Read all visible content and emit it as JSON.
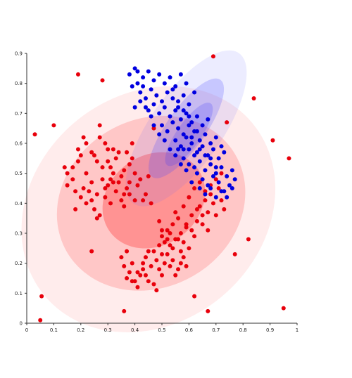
{
  "chart_data": {
    "type": "scatter",
    "title": "",
    "xlabel": "",
    "ylabel": "",
    "xlim": [
      0,
      1
    ],
    "ylim": [
      0,
      0.9
    ],
    "grid": false,
    "x_ticks": [
      "0",
      "0.1",
      "0.2",
      "0.3",
      "0.4",
      "0.5",
      "0.6",
      "0.7",
      "0.8",
      "0.9",
      "1"
    ],
    "y_ticks": [
      "0",
      "0.1",
      "0.2",
      "0.3",
      "0.4",
      "0.5",
      "0.6",
      "0.7",
      "0.8",
      "0.9"
    ],
    "series": [
      {
        "color": "#e8000b",
        "values": [
          [
            0.05,
            0.01
          ],
          [
            0.055,
            0.09
          ],
          [
            0.03,
            0.63
          ],
          [
            0.1,
            0.66
          ],
          [
            0.19,
            0.83
          ],
          [
            0.28,
            0.81
          ],
          [
            0.36,
            0.04
          ],
          [
            0.47,
            0.65
          ],
          [
            0.69,
            0.89
          ],
          [
            0.84,
            0.75
          ],
          [
            0.74,
            0.67
          ],
          [
            0.91,
            0.61
          ],
          [
            0.97,
            0.55
          ],
          [
            0.82,
            0.28
          ],
          [
            0.77,
            0.23
          ],
          [
            0.62,
            0.09
          ],
          [
            0.67,
            0.04
          ],
          [
            0.95,
            0.05
          ],
          [
            0.24,
            0.24
          ],
          [
            0.43,
            0.41
          ],
          [
            0.46,
            0.4
          ],
          [
            0.15,
            0.5
          ],
          [
            0.17,
            0.52
          ],
          [
            0.2,
            0.56
          ],
          [
            0.21,
            0.62
          ],
          [
            0.22,
            0.5
          ],
          [
            0.24,
            0.47
          ],
          [
            0.25,
            0.56
          ],
          [
            0.26,
            0.54
          ],
          [
            0.27,
            0.62
          ],
          [
            0.29,
            0.6
          ],
          [
            0.3,
            0.58
          ],
          [
            0.31,
            0.52
          ],
          [
            0.32,
            0.47
          ],
          [
            0.33,
            0.55
          ],
          [
            0.35,
            0.49
          ],
          [
            0.36,
            0.51
          ],
          [
            0.37,
            0.45
          ],
          [
            0.38,
            0.53
          ],
          [
            0.39,
            0.6
          ],
          [
            0.4,
            0.5
          ],
          [
            0.41,
            0.46
          ],
          [
            0.22,
            0.4
          ],
          [
            0.25,
            0.38
          ],
          [
            0.27,
            0.36
          ],
          [
            0.29,
            0.42
          ],
          [
            0.31,
            0.4
          ],
          [
            0.33,
            0.44
          ],
          [
            0.35,
            0.41
          ],
          [
            0.36,
            0.39
          ],
          [
            0.38,
            0.43
          ],
          [
            0.4,
            0.41
          ],
          [
            0.14,
            0.52
          ],
          [
            0.15,
            0.46
          ],
          [
            0.18,
            0.44
          ],
          [
            0.2,
            0.42
          ],
          [
            0.23,
            0.44
          ],
          [
            0.26,
            0.43
          ],
          [
            0.28,
            0.48
          ],
          [
            0.3,
            0.46
          ],
          [
            0.32,
            0.5
          ],
          [
            0.34,
            0.57
          ],
          [
            0.37,
            0.57
          ],
          [
            0.19,
            0.58
          ],
          [
            0.22,
            0.6
          ],
          [
            0.24,
            0.57
          ],
          [
            0.27,
            0.66
          ],
          [
            0.28,
            0.52
          ],
          [
            0.3,
            0.54
          ],
          [
            0.17,
            0.48
          ],
          [
            0.19,
            0.54
          ],
          [
            0.21,
            0.45
          ],
          [
            0.24,
            0.41
          ],
          [
            0.26,
            0.35
          ],
          [
            0.29,
            0.45
          ],
          [
            0.31,
            0.48
          ],
          [
            0.34,
            0.47
          ],
          [
            0.36,
            0.43
          ],
          [
            0.38,
            0.47
          ],
          [
            0.39,
            0.55
          ],
          [
            0.42,
            0.48
          ],
          [
            0.44,
            0.43
          ],
          [
            0.45,
            0.49
          ],
          [
            0.18,
            0.38
          ],
          [
            0.32,
            0.58
          ],
          [
            0.49,
            0.34
          ],
          [
            0.5,
            0.29
          ],
          [
            0.52,
            0.31
          ],
          [
            0.53,
            0.26
          ],
          [
            0.54,
            0.33
          ],
          [
            0.55,
            0.28
          ],
          [
            0.56,
            0.35
          ],
          [
            0.57,
            0.3
          ],
          [
            0.58,
            0.27
          ],
          [
            0.59,
            0.32
          ],
          [
            0.6,
            0.25
          ],
          [
            0.61,
            0.36
          ],
          [
            0.62,
            0.29
          ],
          [
            0.63,
            0.34
          ],
          [
            0.64,
            0.39
          ],
          [
            0.65,
            0.33
          ],
          [
            0.66,
            0.41
          ],
          [
            0.67,
            0.37
          ],
          [
            0.68,
            0.43
          ],
          [
            0.69,
            0.4
          ],
          [
            0.7,
            0.36
          ],
          [
            0.71,
            0.45
          ],
          [
            0.72,
            0.41
          ],
          [
            0.73,
            0.38
          ],
          [
            0.6,
            0.42
          ],
          [
            0.62,
            0.45
          ],
          [
            0.64,
            0.47
          ],
          [
            0.66,
            0.44
          ],
          [
            0.68,
            0.46
          ],
          [
            0.7,
            0.48
          ],
          [
            0.72,
            0.5
          ],
          [
            0.58,
            0.39
          ],
          [
            0.55,
            0.37
          ],
          [
            0.53,
            0.3
          ],
          [
            0.51,
            0.27
          ],
          [
            0.5,
            0.23
          ],
          [
            0.48,
            0.21
          ],
          [
            0.46,
            0.19
          ],
          [
            0.45,
            0.24
          ],
          [
            0.44,
            0.22
          ],
          [
            0.43,
            0.18
          ],
          [
            0.42,
            0.16
          ],
          [
            0.41,
            0.12
          ],
          [
            0.4,
            0.14
          ],
          [
            0.39,
            0.2
          ],
          [
            0.38,
            0.17
          ],
          [
            0.37,
            0.15
          ],
          [
            0.36,
            0.19
          ],
          [
            0.47,
            0.13
          ],
          [
            0.49,
            0.18
          ],
          [
            0.51,
            0.2
          ],
          [
            0.52,
            0.23
          ],
          [
            0.54,
            0.21
          ],
          [
            0.56,
            0.18
          ],
          [
            0.58,
            0.22
          ],
          [
            0.59,
            0.19
          ],
          [
            0.47,
            0.24
          ],
          [
            0.49,
            0.26
          ],
          [
            0.5,
            0.31
          ],
          [
            0.52,
            0.28
          ],
          [
            0.54,
            0.25
          ],
          [
            0.56,
            0.28
          ],
          [
            0.57,
            0.24
          ],
          [
            0.59,
            0.33
          ],
          [
            0.61,
            0.31
          ],
          [
            0.63,
            0.38
          ],
          [
            0.65,
            0.36
          ],
          [
            0.67,
            0.31
          ],
          [
            0.44,
            0.16
          ],
          [
            0.41,
            0.17
          ],
          [
            0.39,
            0.14
          ],
          [
            0.45,
            0.14
          ],
          [
            0.48,
            0.11
          ],
          [
            0.5,
            0.16
          ],
          [
            0.53,
            0.19
          ],
          [
            0.55,
            0.16
          ],
          [
            0.57,
            0.2
          ],
          [
            0.35,
            0.22
          ],
          [
            0.37,
            0.24
          ],
          [
            0.43,
            0.2
          ]
        ]
      },
      {
        "color": "#0000e0",
        "values": [
          [
            0.4,
            0.85
          ],
          [
            0.38,
            0.83
          ],
          [
            0.41,
            0.8
          ],
          [
            0.43,
            0.82
          ],
          [
            0.45,
            0.84
          ],
          [
            0.47,
            0.81
          ],
          [
            0.49,
            0.83
          ],
          [
            0.51,
            0.8
          ],
          [
            0.53,
            0.82
          ],
          [
            0.55,
            0.79
          ],
          [
            0.57,
            0.83
          ],
          [
            0.59,
            0.8
          ],
          [
            0.42,
            0.77
          ],
          [
            0.44,
            0.75
          ],
          [
            0.46,
            0.78
          ],
          [
            0.48,
            0.76
          ],
          [
            0.5,
            0.74
          ],
          [
            0.52,
            0.77
          ],
          [
            0.54,
            0.75
          ],
          [
            0.56,
            0.72
          ],
          [
            0.58,
            0.76
          ],
          [
            0.6,
            0.73
          ],
          [
            0.62,
            0.77
          ],
          [
            0.4,
            0.72
          ],
          [
            0.42,
            0.74
          ],
          [
            0.45,
            0.71
          ],
          [
            0.47,
            0.73
          ],
          [
            0.49,
            0.7
          ],
          [
            0.51,
            0.72
          ],
          [
            0.53,
            0.69
          ],
          [
            0.55,
            0.71
          ],
          [
            0.57,
            0.68
          ],
          [
            0.59,
            0.7
          ],
          [
            0.61,
            0.67
          ],
          [
            0.63,
            0.69
          ],
          [
            0.65,
            0.66
          ],
          [
            0.67,
            0.68
          ],
          [
            0.5,
            0.66
          ],
          [
            0.52,
            0.64
          ],
          [
            0.54,
            0.67
          ],
          [
            0.56,
            0.65
          ],
          [
            0.58,
            0.63
          ],
          [
            0.6,
            0.66
          ],
          [
            0.62,
            0.64
          ],
          [
            0.64,
            0.61
          ],
          [
            0.66,
            0.63
          ],
          [
            0.68,
            0.6
          ],
          [
            0.7,
            0.62
          ],
          [
            0.55,
            0.61
          ],
          [
            0.57,
            0.59
          ],
          [
            0.59,
            0.62
          ],
          [
            0.61,
            0.6
          ],
          [
            0.63,
            0.57
          ],
          [
            0.65,
            0.59
          ],
          [
            0.67,
            0.56
          ],
          [
            0.69,
            0.58
          ],
          [
            0.71,
            0.55
          ],
          [
            0.73,
            0.57
          ],
          [
            0.58,
            0.55
          ],
          [
            0.6,
            0.53
          ],
          [
            0.62,
            0.56
          ],
          [
            0.64,
            0.54
          ],
          [
            0.66,
            0.51
          ],
          [
            0.68,
            0.53
          ],
          [
            0.7,
            0.5
          ],
          [
            0.72,
            0.52
          ],
          [
            0.74,
            0.49
          ],
          [
            0.76,
            0.51
          ],
          [
            0.63,
            0.5
          ],
          [
            0.65,
            0.48
          ],
          [
            0.67,
            0.46
          ],
          [
            0.69,
            0.49
          ],
          [
            0.71,
            0.47
          ],
          [
            0.73,
            0.44
          ],
          [
            0.75,
            0.46
          ],
          [
            0.77,
            0.48
          ],
          [
            0.64,
            0.45
          ],
          [
            0.66,
            0.43
          ],
          [
            0.68,
            0.45
          ],
          [
            0.7,
            0.42
          ],
          [
            0.72,
            0.44
          ],
          [
            0.74,
            0.42
          ],
          [
            0.76,
            0.45
          ],
          [
            0.61,
            0.47
          ],
          [
            0.59,
            0.51
          ],
          [
            0.57,
            0.53
          ],
          [
            0.55,
            0.56
          ],
          [
            0.53,
            0.58
          ],
          [
            0.51,
            0.61
          ],
          [
            0.49,
            0.63
          ],
          [
            0.47,
            0.66
          ],
          [
            0.46,
            0.69
          ],
          [
            0.44,
            0.72
          ],
          [
            0.56,
            0.58
          ],
          [
            0.58,
            0.58
          ],
          [
            0.6,
            0.58
          ],
          [
            0.62,
            0.52
          ],
          [
            0.64,
            0.58
          ],
          [
            0.66,
            0.56
          ],
          [
            0.68,
            0.55
          ],
          [
            0.7,
            0.52
          ],
          [
            0.72,
            0.59
          ],
          [
            0.61,
            0.62
          ],
          [
            0.63,
            0.64
          ],
          [
            0.6,
            0.69
          ],
          [
            0.58,
            0.71
          ],
          [
            0.56,
            0.74
          ],
          [
            0.54,
            0.78
          ],
          [
            0.41,
            0.84
          ],
          [
            0.39,
            0.79
          ],
          [
            0.43,
            0.79
          ]
        ]
      }
    ],
    "ellipses": [
      {
        "color": "#ff6666",
        "opacity": 0.12,
        "cx": 0.45,
        "cy": 0.38,
        "rx": 0.5,
        "ry": 0.38,
        "angle_deg": -40
      },
      {
        "color": "#ff4444",
        "opacity": 0.22,
        "cx": 0.46,
        "cy": 0.4,
        "rx": 0.36,
        "ry": 0.28,
        "angle_deg": -30
      },
      {
        "color": "#ff3333",
        "opacity": 0.35,
        "cx": 0.47,
        "cy": 0.41,
        "rx": 0.2,
        "ry": 0.15,
        "angle_deg": -35
      },
      {
        "color": "#6666ff",
        "opacity": 0.12,
        "cx": 0.59,
        "cy": 0.65,
        "rx": 0.34,
        "ry": 0.12,
        "angle_deg": -55
      },
      {
        "color": "#4444ff",
        "opacity": 0.22,
        "cx": 0.59,
        "cy": 0.65,
        "rx": 0.22,
        "ry": 0.065,
        "angle_deg": -55
      },
      {
        "color": "#3333ff",
        "opacity": 0.2,
        "cx": 0.6,
        "cy": 0.63,
        "rx": 0.14,
        "ry": 0.04,
        "angle_deg": -55
      }
    ]
  }
}
